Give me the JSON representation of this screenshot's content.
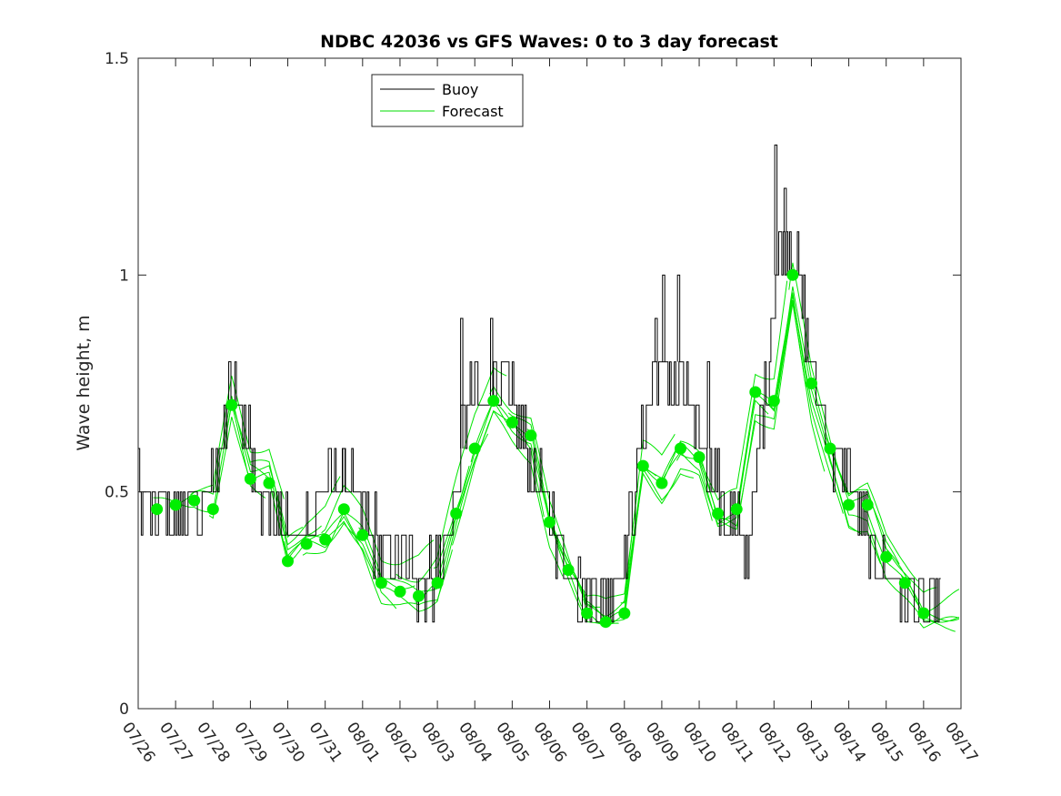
{
  "chart_data": {
    "type": "line",
    "title": "NDBC 42036 vs GFS Waves: 0 to 3 day forecast",
    "xlabel": "",
    "ylabel": "Wave height, m",
    "xlim": [
      0,
      22
    ],
    "ylim": [
      0,
      1.5
    ],
    "yticks": [
      0,
      0.5,
      1,
      1.5
    ],
    "ytick_labels": [
      "0",
      "0.5",
      "1",
      "1.5"
    ],
    "xtick_labels": [
      "07/26",
      "07/27",
      "07/28",
      "07/29",
      "07/30",
      "07/31",
      "08/01",
      "08/02",
      "08/03",
      "08/04",
      "08/05",
      "08/06",
      "08/07",
      "08/08",
      "08/09",
      "08/10",
      "08/11",
      "08/12",
      "08/13",
      "08/14",
      "08/15",
      "08/16",
      "08/17"
    ],
    "legend": {
      "placement": "top-left",
      "entries": [
        {
          "label": "Buoy",
          "color": "#000000"
        },
        {
          "label": "Forecast",
          "color": "#00dd00"
        }
      ]
    },
    "colors": {
      "buoy": "#000000",
      "forecast": "#00e600",
      "markers": "#00ee00"
    },
    "buoy_anchors": [
      {
        "x": 0.0,
        "y": 0.52
      },
      {
        "x": 0.1,
        "y": 0.5
      },
      {
        "x": 0.3,
        "y": 0.45
      },
      {
        "x": 0.5,
        "y": 0.44
      },
      {
        "x": 0.8,
        "y": 0.45
      },
      {
        "x": 1.0,
        "y": 0.46
      },
      {
        "x": 1.3,
        "y": 0.46
      },
      {
        "x": 1.6,
        "y": 0.47
      },
      {
        "x": 1.8,
        "y": 0.5
      },
      {
        "x": 2.0,
        "y": 0.5
      },
      {
        "x": 2.2,
        "y": 0.6
      },
      {
        "x": 2.4,
        "y": 0.7
      },
      {
        "x": 2.5,
        "y": 0.72
      },
      {
        "x": 2.7,
        "y": 0.7
      },
      {
        "x": 2.9,
        "y": 0.63
      },
      {
        "x": 3.1,
        "y": 0.55
      },
      {
        "x": 3.3,
        "y": 0.5
      },
      {
        "x": 3.6,
        "y": 0.46
      },
      {
        "x": 3.9,
        "y": 0.42
      },
      {
        "x": 4.2,
        "y": 0.4
      },
      {
        "x": 4.5,
        "y": 0.43
      },
      {
        "x": 4.8,
        "y": 0.47
      },
      {
        "x": 5.1,
        "y": 0.52
      },
      {
        "x": 5.4,
        "y": 0.55
      },
      {
        "x": 5.7,
        "y": 0.5
      },
      {
        "x": 6.0,
        "y": 0.44
      },
      {
        "x": 6.3,
        "y": 0.4
      },
      {
        "x": 6.6,
        "y": 0.36
      },
      {
        "x": 6.9,
        "y": 0.33
      },
      {
        "x": 7.2,
        "y": 0.32
      },
      {
        "x": 7.5,
        "y": 0.3
      },
      {
        "x": 7.8,
        "y": 0.3
      },
      {
        "x": 8.1,
        "y": 0.34
      },
      {
        "x": 8.3,
        "y": 0.4
      },
      {
        "x": 8.5,
        "y": 0.5
      },
      {
        "x": 8.7,
        "y": 0.65
      },
      {
        "x": 8.9,
        "y": 0.75
      },
      {
        "x": 9.1,
        "y": 0.72
      },
      {
        "x": 9.3,
        "y": 0.7
      },
      {
        "x": 9.5,
        "y": 0.75
      },
      {
        "x": 9.7,
        "y": 0.78
      },
      {
        "x": 9.9,
        "y": 0.72
      },
      {
        "x": 10.1,
        "y": 0.65
      },
      {
        "x": 10.3,
        "y": 0.62
      },
      {
        "x": 10.5,
        "y": 0.58
      },
      {
        "x": 10.8,
        "y": 0.5
      },
      {
        "x": 11.1,
        "y": 0.42
      },
      {
        "x": 11.4,
        "y": 0.35
      },
      {
        "x": 11.7,
        "y": 0.3
      },
      {
        "x": 12.0,
        "y": 0.27
      },
      {
        "x": 12.3,
        "y": 0.26
      },
      {
        "x": 12.6,
        "y": 0.27
      },
      {
        "x": 12.9,
        "y": 0.32
      },
      {
        "x": 13.1,
        "y": 0.38
      },
      {
        "x": 13.3,
        "y": 0.5
      },
      {
        "x": 13.5,
        "y": 0.65
      },
      {
        "x": 13.7,
        "y": 0.75
      },
      {
        "x": 13.9,
        "y": 0.8
      },
      {
        "x": 14.1,
        "y": 0.78
      },
      {
        "x": 14.3,
        "y": 0.72
      },
      {
        "x": 14.5,
        "y": 0.78
      },
      {
        "x": 14.7,
        "y": 0.7
      },
      {
        "x": 14.9,
        "y": 0.65
      },
      {
        "x": 15.1,
        "y": 0.6
      },
      {
        "x": 15.3,
        "y": 0.55
      },
      {
        "x": 15.5,
        "y": 0.5
      },
      {
        "x": 15.7,
        "y": 0.45
      },
      {
        "x": 15.9,
        "y": 0.42
      },
      {
        "x": 16.1,
        "y": 0.4
      },
      {
        "x": 16.3,
        "y": 0.38
      },
      {
        "x": 16.5,
        "y": 0.5
      },
      {
        "x": 16.7,
        "y": 0.7
      },
      {
        "x": 16.9,
        "y": 0.85
      },
      {
        "x": 17.1,
        "y": 1.05
      },
      {
        "x": 17.3,
        "y": 1.1
      },
      {
        "x": 17.5,
        "y": 1.05
      },
      {
        "x": 17.7,
        "y": 0.95
      },
      {
        "x": 17.9,
        "y": 0.85
      },
      {
        "x": 18.1,
        "y": 0.75
      },
      {
        "x": 18.3,
        "y": 0.68
      },
      {
        "x": 18.5,
        "y": 0.6
      },
      {
        "x": 18.7,
        "y": 0.55
      },
      {
        "x": 18.9,
        "y": 0.55
      },
      {
        "x": 19.1,
        "y": 0.5
      },
      {
        "x": 19.3,
        "y": 0.45
      },
      {
        "x": 19.5,
        "y": 0.4
      },
      {
        "x": 19.8,
        "y": 0.35
      },
      {
        "x": 20.1,
        "y": 0.3
      },
      {
        "x": 20.4,
        "y": 0.28
      },
      {
        "x": 20.7,
        "y": 0.25
      },
      {
        "x": 21.0,
        "y": 0.22
      },
      {
        "x": 21.2,
        "y": 0.22
      },
      {
        "x": 21.4,
        "y": 0.28
      },
      {
        "x": 21.5,
        "y": 0.25
      }
    ],
    "buoy_spikes": [
      {
        "x": 2.45,
        "y": 0.8
      },
      {
        "x": 8.65,
        "y": 0.9
      },
      {
        "x": 9.45,
        "y": 0.9
      },
      {
        "x": 13.85,
        "y": 0.9
      },
      {
        "x": 14.05,
        "y": 1.0
      },
      {
        "x": 14.45,
        "y": 1.0
      },
      {
        "x": 15.25,
        "y": 0.8
      },
      {
        "x": 17.05,
        "y": 1.3
      },
      {
        "x": 17.3,
        "y": 1.2
      },
      {
        "x": 5.5,
        "y": 0.6
      },
      {
        "x": 11.8,
        "y": 0.35
      },
      {
        "x": 12.4,
        "y": 0.2
      }
    ],
    "forecast_markers": [
      {
        "x": 0.5,
        "y": 0.46
      },
      {
        "x": 1.0,
        "y": 0.47
      },
      {
        "x": 1.5,
        "y": 0.48
      },
      {
        "x": 2.0,
        "y": 0.46
      },
      {
        "x": 2.5,
        "y": 0.7
      },
      {
        "x": 3.0,
        "y": 0.53
      },
      {
        "x": 3.5,
        "y": 0.52
      },
      {
        "x": 4.0,
        "y": 0.34
      },
      {
        "x": 4.5,
        "y": 0.38
      },
      {
        "x": 5.0,
        "y": 0.39
      },
      {
        "x": 5.5,
        "y": 0.46
      },
      {
        "x": 6.0,
        "y": 0.4
      },
      {
        "x": 6.5,
        "y": 0.29
      },
      {
        "x": 7.0,
        "y": 0.27
      },
      {
        "x": 7.5,
        "y": 0.26
      },
      {
        "x": 8.0,
        "y": 0.29
      },
      {
        "x": 8.5,
        "y": 0.45
      },
      {
        "x": 9.0,
        "y": 0.6
      },
      {
        "x": 9.5,
        "y": 0.71
      },
      {
        "x": 10.0,
        "y": 0.66
      },
      {
        "x": 10.5,
        "y": 0.63
      },
      {
        "x": 11.0,
        "y": 0.43
      },
      {
        "x": 11.5,
        "y": 0.32
      },
      {
        "x": 12.0,
        "y": 0.22
      },
      {
        "x": 12.5,
        "y": 0.2
      },
      {
        "x": 13.0,
        "y": 0.22
      },
      {
        "x": 13.5,
        "y": 0.56
      },
      {
        "x": 14.0,
        "y": 0.52
      },
      {
        "x": 14.5,
        "y": 0.6
      },
      {
        "x": 15.0,
        "y": 0.58
      },
      {
        "x": 15.5,
        "y": 0.45
      },
      {
        "x": 16.0,
        "y": 0.46
      },
      {
        "x": 16.5,
        "y": 0.73
      },
      {
        "x": 17.0,
        "y": 0.71
      },
      {
        "x": 17.5,
        "y": 1.0
      },
      {
        "x": 18.0,
        "y": 0.75
      },
      {
        "x": 18.5,
        "y": 0.6
      },
      {
        "x": 19.0,
        "y": 0.47
      },
      {
        "x": 19.5,
        "y": 0.47
      },
      {
        "x": 20.0,
        "y": 0.35
      },
      {
        "x": 20.5,
        "y": 0.29
      },
      {
        "x": 21.0,
        "y": 0.22
      }
    ]
  }
}
